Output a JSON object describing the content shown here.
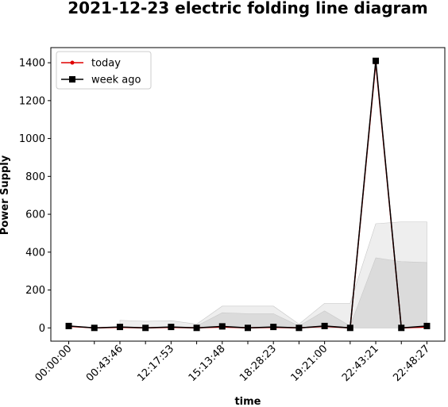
{
  "chart_data": {
    "type": "line",
    "title": "2021-12-23 electric folding line diagram",
    "xlabel": "time",
    "ylabel": "Power Supply",
    "categories": [
      "00:00:00",
      null,
      "00:43:46",
      null,
      "12:17:53",
      null,
      "15:13:48",
      null,
      "18:28:23",
      null,
      "19:21:00",
      null,
      "22:43:21",
      null,
      "22:48:27"
    ],
    "series": [
      {
        "name": "today",
        "color": "#e00000",
        "marker": "circle",
        "values": [
          8,
          0,
          3,
          0,
          3,
          0,
          5,
          0,
          3,
          0,
          8,
          0,
          1400,
          0,
          5
        ]
      },
      {
        "name": "week ago",
        "color": "#000000",
        "marker": "square",
        "values": [
          10,
          0,
          5,
          0,
          5,
          0,
          8,
          0,
          5,
          0,
          10,
          0,
          1410,
          0,
          10
        ]
      }
    ],
    "bands": [
      {
        "color": "#ececec",
        "upper": [
          null,
          null,
          40,
          35,
          38,
          20,
          115,
          115,
          115,
          20,
          130,
          130,
          550,
          560,
          560
        ],
        "lower": [
          null,
          null,
          0,
          0,
          0,
          0,
          0,
          0,
          0,
          0,
          0,
          0,
          0,
          0,
          0
        ]
      },
      {
        "color": "#d8d8d8",
        "upper": [
          null,
          null,
          null,
          null,
          null,
          10,
          80,
          75,
          75,
          10,
          90,
          10,
          370,
          350,
          345
        ],
        "lower": [
          null,
          null,
          null,
          null,
          null,
          0,
          0,
          0,
          0,
          0,
          0,
          0,
          0,
          0,
          0
        ]
      }
    ],
    "ylim": [
      -70,
      1480
    ],
    "yticks": [
      0,
      200,
      400,
      600,
      800,
      1000,
      1200,
      1400
    ],
    "legend": "upper left"
  }
}
